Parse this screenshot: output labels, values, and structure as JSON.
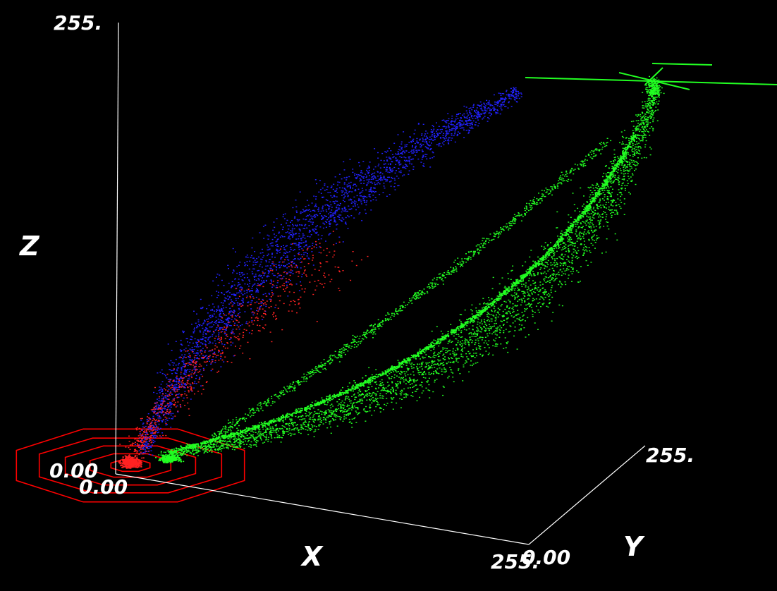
{
  "chart_data": {
    "type": "scatter",
    "title": "",
    "axes": {
      "x": {
        "label": "X",
        "min_label": "0.00",
        "max_label": "255.",
        "range": [
          0,
          255
        ]
      },
      "y": {
        "label": "Y",
        "min_label": "0.00",
        "max_label": "255.",
        "range": [
          0,
          255
        ]
      },
      "z": {
        "label": "Z",
        "max_label": "255.",
        "range": [
          0,
          255
        ]
      }
    },
    "grid": false,
    "legend": "none",
    "series": [
      {
        "color": "#2222ff",
        "cluster": "upper band",
        "values": {
          "x": [
            0,
            255
          ],
          "y": [
            0,
            60
          ],
          "z": [
            0,
            150
          ]
        }
      },
      {
        "color": "#22ff22",
        "cluster": "lower band",
        "values": {
          "x": [
            0,
            255
          ],
          "y": [
            0,
            255
          ],
          "z": [
            0,
            230
          ]
        }
      },
      {
        "color": "#ff2222",
        "cluster": "origin dense",
        "values": {
          "x": [
            0,
            120
          ],
          "y": [
            0,
            40
          ],
          "z": [
            0,
            110
          ]
        }
      }
    ],
    "contours": {
      "color": "#ff0000",
      "rings": 5,
      "plane": "floor",
      "center": [
        0,
        0
      ]
    },
    "crosshair": {
      "color": "#22ff22"
    }
  }
}
